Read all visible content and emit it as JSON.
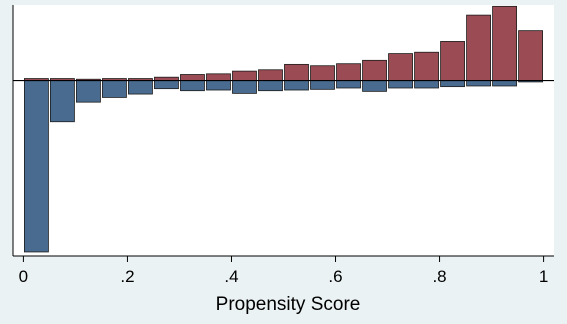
{
  "chart_data": {
    "type": "bar",
    "title": "",
    "xlabel": "Propensity Score",
    "ylabel": "",
    "xlim": [
      -0.02,
      1.02
    ],
    "xticks": [
      0,
      0.2,
      0.4,
      0.6,
      0.8,
      1
    ],
    "xtick_labels": [
      "0",
      ".2",
      ".4",
      ".6",
      ".8",
      "1"
    ],
    "ylim": [
      -26,
      11.2
    ],
    "bin_width": 0.05,
    "bin_centers": [
      0.025,
      0.075,
      0.125,
      0.175,
      0.225,
      0.275,
      0.325,
      0.375,
      0.425,
      0.475,
      0.525,
      0.575,
      0.625,
      0.675,
      0.725,
      0.775,
      0.825,
      0.875,
      0.925,
      0.975
    ],
    "grid": false,
    "legend": "none",
    "series": [
      {
        "values": [
          0.3,
          0.3,
          0.2,
          0.3,
          0.3,
          0.5,
          0.9,
          1.0,
          1.4,
          1.6,
          2.4,
          2.2,
          2.5,
          3.0,
          4.0,
          4.2,
          5.8,
          9.7,
          11.0,
          7.4
        ],
        "color": "#9a4b53"
      },
      {
        "values": [
          -25.4,
          -6.1,
          -3.2,
          -2.5,
          -2.0,
          -1.2,
          -1.5,
          -1.4,
          -1.9,
          -1.5,
          -1.4,
          -1.3,
          -1.1,
          -1.6,
          -1.1,
          -1.1,
          -0.9,
          -0.8,
          -0.8,
          -0.2
        ],
        "color": "#486b8f"
      }
    ]
  }
}
